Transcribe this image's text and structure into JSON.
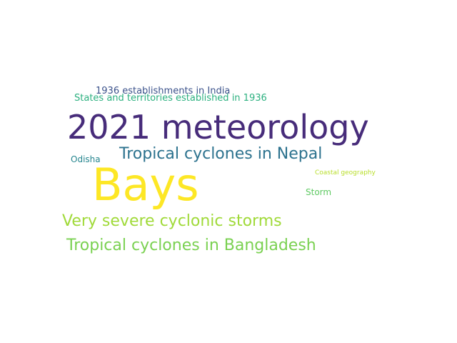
{
  "words": [
    {
      "text": "1936 establishments in India",
      "color": "#3b528b"
    },
    {
      "text": "States and territories established in 1936",
      "color": "#2bb07f"
    },
    {
      "text": "2021 meteorology",
      "color": "#472c7a"
    },
    {
      "text": "Tropical cyclones in Nepal",
      "color": "#2c728e"
    },
    {
      "text": "Odisha",
      "color": "#25858e"
    },
    {
      "text": "Bays",
      "color": "#fde725"
    },
    {
      "text": "Coastal geography",
      "color": "#b8de29"
    },
    {
      "text": "Storm",
      "color": "#5ec962"
    },
    {
      "text": "Very severe cyclonic storms",
      "color": "#a0da39"
    },
    {
      "text": "Tropical cyclones in Bangladesh",
      "color": "#7ad151"
    }
  ]
}
